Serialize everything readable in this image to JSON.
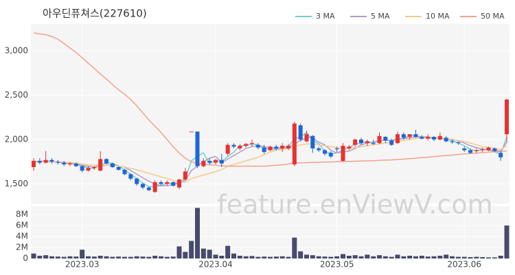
{
  "chart_data": {
    "type": "candlestick",
    "title": "아우딘퓨쳐스(227610)",
    "watermark": "feature.enViewV.com",
    "categories": [
      null,
      null,
      null,
      null,
      null,
      null,
      null,
      null,
      "2023.03",
      null,
      null,
      null,
      null,
      null,
      null,
      null,
      null,
      null,
      null,
      null,
      null,
      null,
      null,
      null,
      null,
      null,
      null,
      null,
      null,
      null,
      "2023.04",
      null,
      null,
      null,
      null,
      null,
      null,
      null,
      null,
      null,
      null,
      null,
      null,
      null,
      null,
      null,
      null,
      null,
      null,
      null,
      "2023.05",
      null,
      null,
      null,
      null,
      null,
      null,
      null,
      null,
      null,
      null,
      null,
      null,
      null,
      null,
      null,
      null,
      null,
      null,
      null,
      null,
      "2023.06",
      null,
      null,
      null,
      null,
      null,
      null,
      null
    ],
    "open": [
      1690,
      1760,
      1740,
      1770,
      1750,
      1740,
      1720,
      1730,
      1700,
      1650,
      1680,
      1650,
      1780,
      1730,
      1690,
      1660,
      1610,
      1560,
      1500,
      1460,
      1410,
      1520,
      1500,
      1520,
      1460,
      1550,
      2090,
      2090,
      1700,
      1760,
      1740,
      1770,
      1840,
      1940,
      1900,
      1930,
      1950,
      1940,
      1910,
      1880,
      1920,
      1900,
      1900,
      1720,
      2160,
      1980,
      2040,
      1900,
      1880,
      1850,
      1900,
      1760,
      1900,
      1940,
      2000,
      1960,
      1960,
      1960,
      2030,
      1990,
      1960,
      2060,
      2030,
      2060,
      2030,
      2010,
      2030,
      2000,
      2020,
      1980,
      1970,
      1900,
      1880,
      1870,
      1880,
      1880,
      1900,
      1850,
      2060
    ],
    "high": [
      1790,
      1790,
      1870,
      1790,
      1770,
      1760,
      1750,
      1740,
      1710,
      1700,
      1700,
      1870,
      1790,
      1740,
      1700,
      1670,
      1620,
      1570,
      1510,
      1470,
      1540,
      1540,
      1540,
      1530,
      1560,
      1680,
      2090,
      2090,
      1790,
      1790,
      1780,
      1840,
      1960,
      1960,
      1950,
      1960,
      2000,
      1960,
      1940,
      1930,
      1940,
      1960,
      1950,
      2200,
      2180,
      2100,
      2050,
      1920,
      1890,
      1870,
      1920,
      1960,
      1940,
      2010,
      2020,
      2000,
      2000,
      2080,
      2040,
      2010,
      2090,
      2080,
      2060,
      2110,
      2050,
      2060,
      2040,
      2080,
      2040,
      2000,
      1980,
      1920,
      1900,
      1900,
      1910,
      1920,
      1910,
      1870,
      2460
    ],
    "low": [
      1650,
      1720,
      1730,
      1730,
      1720,
      1700,
      1700,
      1690,
      1630,
      1640,
      1660,
      1640,
      1720,
      1680,
      1650,
      1600,
      1540,
      1480,
      1440,
      1420,
      1400,
      1480,
      1480,
      1470,
      1440,
      1540,
      2090,
      1680,
      1690,
      1720,
      1720,
      1690,
      1820,
      1900,
      1880,
      1910,
      1920,
      1890,
      1840,
      1870,
      1880,
      1860,
      1880,
      1700,
      1980,
      1970,
      1850,
      1860,
      1820,
      1790,
      1860,
      1750,
      1880,
      1920,
      1940,
      1930,
      1940,
      1950,
      1960,
      1930,
      1950,
      2000,
      2000,
      2020,
      2000,
      1990,
      1980,
      1990,
      1970,
      1950,
      1940,
      1860,
      1840,
      1850,
      1860,
      1870,
      1860,
      1760,
      1960
    ],
    "close": [
      1760,
      1740,
      1770,
      1750,
      1740,
      1720,
      1730,
      1700,
      1650,
      1680,
      1690,
      1780,
      1730,
      1690,
      1660,
      1610,
      1560,
      1500,
      1460,
      1430,
      1520,
      1500,
      1520,
      1480,
      1550,
      1640,
      2090,
      1700,
      1760,
      1740,
      1770,
      1730,
      1940,
      1920,
      1930,
      1950,
      1960,
      1910,
      1860,
      1920,
      1900,
      1930,
      1930,
      2180,
      2000,
      2060,
      1900,
      1880,
      1840,
      1810,
      1890,
      1930,
      1920,
      2000,
      1960,
      1980,
      1950,
      2040,
      1990,
      1940,
      2060,
      2020,
      2060,
      2030,
      2010,
      2030,
      2000,
      2040,
      1980,
      1970,
      1960,
      1880,
      1850,
      1880,
      1890,
      1910,
      1870,
      1800,
      2450
    ],
    "up_color": "#e8312f",
    "down_color": "#1e66d6",
    "ylim": [
      1280,
      3300
    ],
    "yticks": [
      {
        "value": 1500,
        "label": "1,500"
      },
      {
        "value": 2000,
        "label": "2,000"
      },
      {
        "value": 2500,
        "label": "2,500"
      },
      {
        "value": 3000,
        "label": "3,000"
      }
    ],
    "grid": true,
    "legend": "top-right",
    "series": [
      {
        "name": "3 MA",
        "color": "#6dcfd0",
        "values": [
          1750,
          1755,
          1760,
          1755,
          1745,
          1735,
          1730,
          1720,
          1700,
          1680,
          1675,
          1715,
          1735,
          1735,
          1700,
          1660,
          1610,
          1560,
          1510,
          1470,
          1470,
          1480,
          1510,
          1500,
          1520,
          1560,
          1760,
          1810,
          1850,
          1730,
          1760,
          1750,
          1810,
          1860,
          1930,
          1930,
          1950,
          1940,
          1900,
          1890,
          1890,
          1920,
          1920,
          2010,
          2030,
          2080,
          1990,
          1950,
          1870,
          1840,
          1850,
          1880,
          1910,
          1950,
          1960,
          1980,
          1960,
          1990,
          1990,
          1990,
          2010,
          2010,
          2050,
          2040,
          2030,
          2020,
          2010,
          2020,
          2000,
          1990,
          1960,
          1930,
          1890,
          1870,
          1890,
          1890,
          1860,
          1840,
          2030
        ]
      },
      {
        "name": "5 MA",
        "color": "#b39bc8",
        "values": [
          1750,
          1750,
          1755,
          1750,
          1745,
          1740,
          1730,
          1725,
          1710,
          1700,
          1690,
          1700,
          1710,
          1715,
          1700,
          1690,
          1650,
          1610,
          1570,
          1530,
          1500,
          1480,
          1480,
          1490,
          1510,
          1540,
          1650,
          1700,
          1750,
          1790,
          1810,
          1740,
          1780,
          1820,
          1860,
          1900,
          1920,
          1930,
          1920,
          1910,
          1900,
          1900,
          1910,
          1950,
          1990,
          2020,
          2020,
          1970,
          1940,
          1880,
          1850,
          1860,
          1870,
          1900,
          1940,
          1960,
          1970,
          1990,
          1990,
          1990,
          2000,
          2010,
          2020,
          2030,
          2030,
          2030,
          2020,
          2020,
          2010,
          2000,
          1990,
          1960,
          1930,
          1910,
          1890,
          1880,
          1880,
          1870,
          1970
        ]
      },
      {
        "name": "10 MA",
        "color": "#f5c98a",
        "values": [
          1760,
          1755,
          1752,
          1750,
          1748,
          1745,
          1740,
          1735,
          1725,
          1715,
          1710,
          1712,
          1710,
          1705,
          1700,
          1690,
          1675,
          1660,
          1640,
          1620,
          1600,
          1580,
          1560,
          1540,
          1520,
          1520,
          1560,
          1580,
          1600,
          1620,
          1640,
          1660,
          1700,
          1720,
          1740,
          1760,
          1780,
          1800,
          1830,
          1860,
          1880,
          1890,
          1900,
          1920,
          1940,
          1950,
          1950,
          1940,
          1930,
          1920,
          1910,
          1900,
          1900,
          1910,
          1920,
          1930,
          1940,
          1950,
          1960,
          1970,
          1980,
          1990,
          2000,
          2010,
          2020,
          2020,
          2020,
          2020,
          2010,
          2000,
          1990,
          1980,
          1960,
          1940,
          1920,
          1910,
          1900,
          1890,
          1930
        ]
      },
      {
        "name": "50 MA",
        "color": "#f4a08a",
        "values": [
          3200,
          3190,
          3180,
          3160,
          3130,
          3080,
          3030,
          2980,
          2920,
          2860,
          2800,
          2740,
          2680,
          2620,
          2560,
          2510,
          2450,
          2380,
          2300,
          2220,
          2150,
          2080,
          2000,
          1920,
          1850,
          1790,
          1750,
          1730,
          1720,
          1715,
          1710,
          1705,
          1700,
          1700,
          1700,
          1700,
          1700,
          1700,
          1700,
          1705,
          1710,
          1715,
          1725,
          1735,
          1738,
          1740,
          1742,
          1744,
          1746,
          1748,
          1750,
          1752,
          1754,
          1756,
          1758,
          1760,
          1762,
          1765,
          1768,
          1771,
          1775,
          1780,
          1785,
          1790,
          1796,
          1802,
          1808,
          1814,
          1820,
          1826,
          1832,
          1838,
          1843,
          1848,
          1853,
          1858,
          1862,
          1866,
          1872
        ]
      }
    ],
    "volume": {
      "type": "bar",
      "color": "#474a6b",
      "values": [
        900000,
        500000,
        600000,
        400000,
        350000,
        300000,
        400000,
        350000,
        1600000,
        400000,
        350000,
        500000,
        400000,
        300000,
        350000,
        300000,
        300000,
        400000,
        350000,
        300000,
        500000,
        400000,
        300000,
        350000,
        2200000,
        1200000,
        3200000,
        9200000,
        1800000,
        1600000,
        700000,
        500000,
        2300000,
        900000,
        500000,
        400000,
        450000,
        300000,
        350000,
        300000,
        350000,
        400000,
        300000,
        3800000,
        1300000,
        700000,
        600000,
        400000,
        350000,
        300000,
        400000,
        800000,
        500000,
        600000,
        400000,
        700000,
        400000,
        600000,
        400000,
        300000,
        700000,
        400000,
        500000,
        400000,
        500000,
        350000,
        400000,
        500000,
        700000,
        400000,
        300000,
        300000,
        250000,
        300000,
        250000,
        200000,
        200000,
        500000,
        6000000
      ],
      "ylim": [
        0,
        9500000
      ],
      "yticks": [
        0,
        {
          "value": 2000000,
          "label": "2M"
        },
        {
          "value": 4000000,
          "label": "4M"
        },
        {
          "value": 6000000,
          "label": "6M"
        },
        {
          "value": 8000000,
          "label": "8M"
        }
      ]
    }
  }
}
